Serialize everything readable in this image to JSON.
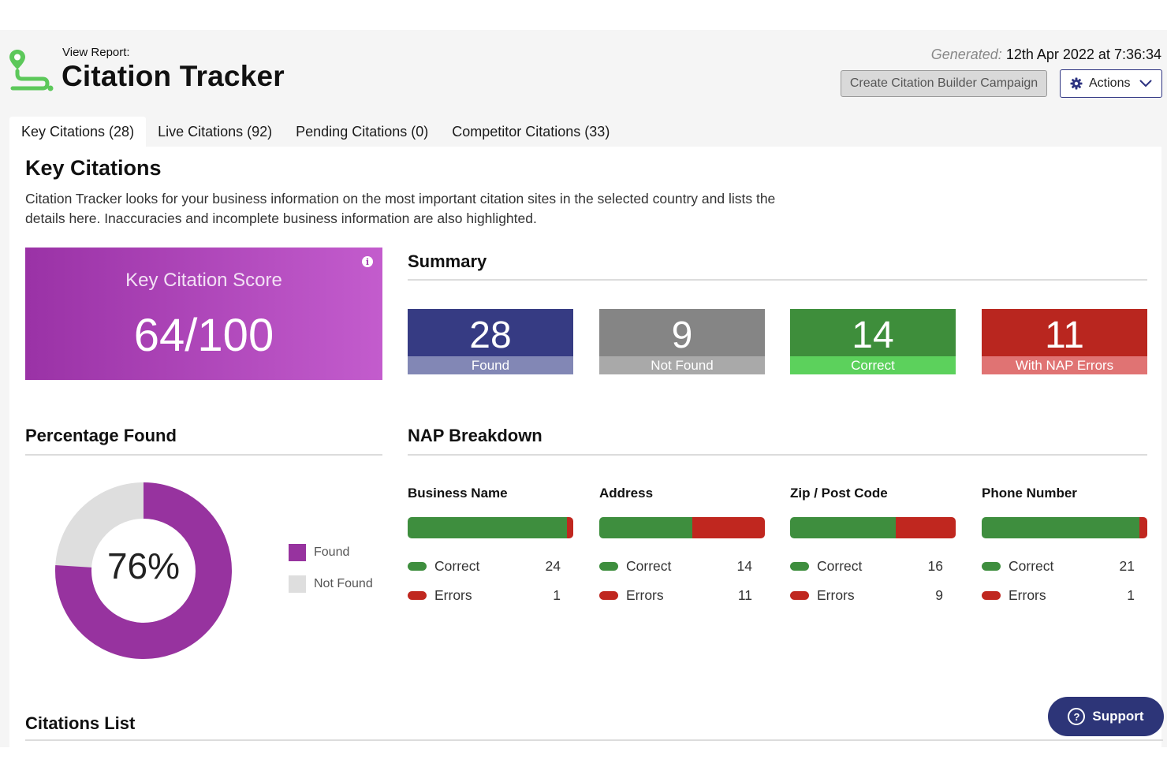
{
  "header": {
    "subtitle": "View Report:",
    "title": "Citation Tracker",
    "generated_label": "Generated:",
    "generated_value": "12th Apr 2022 at 7:36:34",
    "create_button": "Create Citation Builder Campaign",
    "actions_button": "Actions",
    "logo_icon": "location-route-icon",
    "logo_color": "#5cc85a"
  },
  "tabs": [
    {
      "label": "Key Citations (28)",
      "active": true
    },
    {
      "label": "Live Citations (92)",
      "active": false
    },
    {
      "label": "Pending Citations (0)",
      "active": false
    },
    {
      "label": "Competitor Citations (33)",
      "active": false
    }
  ],
  "main": {
    "heading": "Key Citations",
    "intro": "Citation Tracker looks for your business information on the most important citation sites in the selected country and lists the details here. Inaccuracies and incomplete business information are also highlighted.",
    "score": {
      "label": "Key Citation Score",
      "value": "64/100"
    },
    "summary": {
      "heading": "Summary",
      "stats": [
        {
          "value": "28",
          "label": "Found",
          "color": "#363b83",
          "label_color": "#8287b5"
        },
        {
          "value": "9",
          "label": "Not Found",
          "color": "#858585",
          "label_color": "#a9a9a9"
        },
        {
          "value": "14",
          "label": "Correct",
          "color": "#3e8e3b",
          "label_color": "#5cd15c"
        },
        {
          "value": "11",
          "label": "With NAP Errors",
          "color": "#b9261f",
          "label_color": "#e07373"
        }
      ]
    },
    "percentage": {
      "heading": "Percentage Found",
      "value_label": "76%",
      "found_fraction": 0.76,
      "found_color": "#97339f",
      "not_found_color": "#dedede",
      "legend": [
        {
          "label": "Found",
          "color": "#97339f"
        },
        {
          "label": "Not Found",
          "color": "#dedede"
        }
      ]
    },
    "nap": {
      "heading": "NAP Breakdown",
      "correct_label": "Correct",
      "errors_label": "Errors",
      "columns": [
        {
          "title": "Business Name",
          "correct": "24",
          "errors": "1"
        },
        {
          "title": "Address",
          "correct": "14",
          "errors": "11"
        },
        {
          "title": "Zip / Post Code",
          "correct": "16",
          "errors": "9"
        },
        {
          "title": "Phone Number",
          "correct": "21",
          "errors": "1"
        }
      ]
    },
    "citations_list_heading": "Citations List"
  },
  "support": {
    "label": "Support",
    "icon": "question-circle-icon"
  }
}
